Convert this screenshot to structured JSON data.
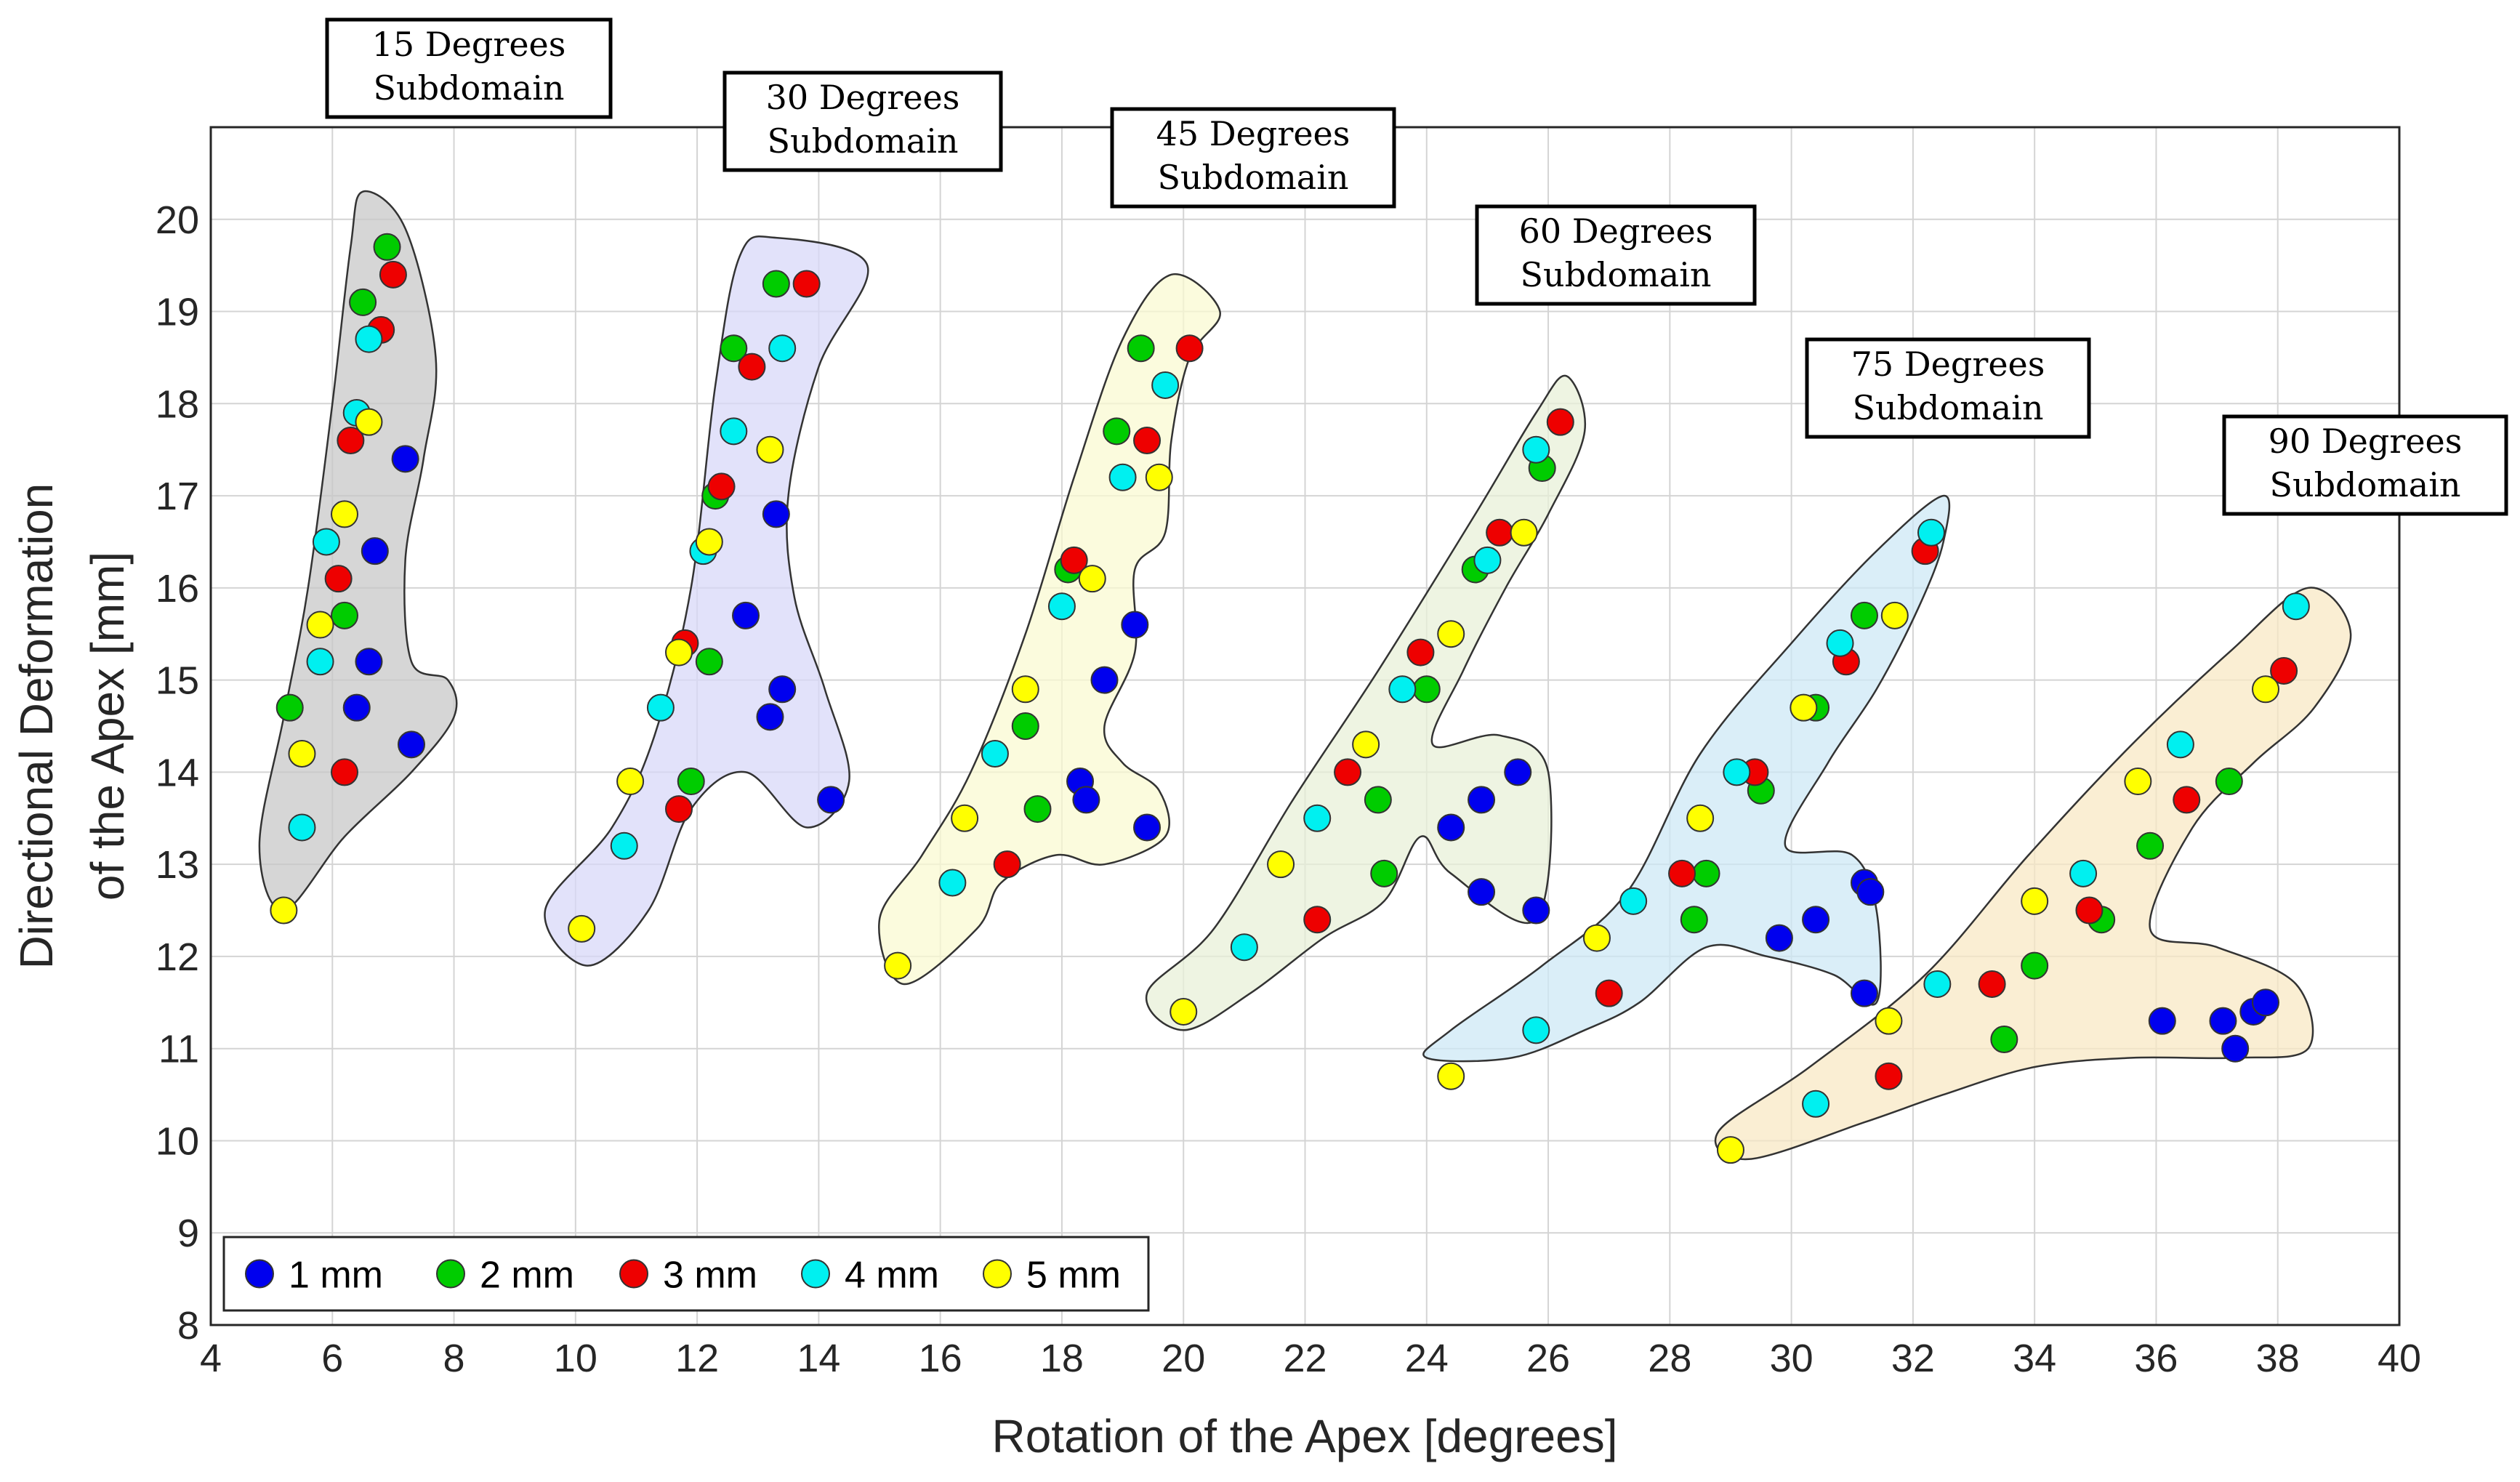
{
  "chart_data": {
    "type": "scatter",
    "xlabel": "Rotation of the Apex [degrees]",
    "ylabel": [
      "Directional Deformation",
      "of the Apex [mm]"
    ],
    "xlim": [
      4,
      40
    ],
    "ylim": [
      8,
      21
    ],
    "xticks": [
      4,
      6,
      8,
      10,
      12,
      14,
      16,
      18,
      20,
      22,
      24,
      26,
      28,
      30,
      32,
      34,
      36,
      38,
      40
    ],
    "yticks": [
      8,
      9,
      10,
      11,
      12,
      13,
      14,
      15,
      16,
      17,
      18,
      19,
      20
    ],
    "grid": true,
    "legend_position": "bottom-left",
    "series": [
      {
        "name": "1 mm",
        "color": "#0000ee",
        "points": [
          [
            7.2,
            17.4
          ],
          [
            6.7,
            16.4
          ],
          [
            6.6,
            15.2
          ],
          [
            6.4,
            14.7
          ],
          [
            7.3,
            14.3
          ],
          [
            13.3,
            16.8
          ],
          [
            12.8,
            15.7
          ],
          [
            13.4,
            14.9
          ],
          [
            13.2,
            14.6
          ],
          [
            14.2,
            13.7
          ],
          [
            19.2,
            15.6
          ],
          [
            18.7,
            15.0
          ],
          [
            18.3,
            13.9
          ],
          [
            18.4,
            13.7
          ],
          [
            19.4,
            13.4
          ],
          [
            25.5,
            14.0
          ],
          [
            24.4,
            13.4
          ],
          [
            24.9,
            13.7
          ],
          [
            24.9,
            12.7
          ],
          [
            25.8,
            12.5
          ],
          [
            31.2,
            12.8
          ],
          [
            31.3,
            12.7
          ],
          [
            30.4,
            12.4
          ],
          [
            29.8,
            12.2
          ],
          [
            31.2,
            11.6
          ],
          [
            36.1,
            11.3
          ],
          [
            37.1,
            11.3
          ],
          [
            37.6,
            11.4
          ],
          [
            37.8,
            11.5
          ],
          [
            37.3,
            11.0
          ]
        ]
      },
      {
        "name": "2 mm",
        "color": "#00cc00",
        "points": [
          [
            6.9,
            19.7
          ],
          [
            6.5,
            19.1
          ],
          [
            6.2,
            15.7
          ],
          [
            5.3,
            14.7
          ],
          [
            13.3,
            19.3
          ],
          [
            12.6,
            18.6
          ],
          [
            12.3,
            17.0
          ],
          [
            12.2,
            15.2
          ],
          [
            11.9,
            13.9
          ],
          [
            19.3,
            18.6
          ],
          [
            18.9,
            17.7
          ],
          [
            18.1,
            16.2
          ],
          [
            17.4,
            14.5
          ],
          [
            17.6,
            13.6
          ],
          [
            25.9,
            17.3
          ],
          [
            24.8,
            16.2
          ],
          [
            24.0,
            14.9
          ],
          [
            23.2,
            13.7
          ],
          [
            23.3,
            12.9
          ],
          [
            31.2,
            15.7
          ],
          [
            30.4,
            14.7
          ],
          [
            29.5,
            13.8
          ],
          [
            28.6,
            12.9
          ],
          [
            28.4,
            12.4
          ],
          [
            37.2,
            13.9
          ],
          [
            35.9,
            13.2
          ],
          [
            35.1,
            12.4
          ],
          [
            34.0,
            11.9
          ],
          [
            33.5,
            11.1
          ]
        ]
      },
      {
        "name": "3 mm",
        "color": "#ee0000",
        "points": [
          [
            7.0,
            19.4
          ],
          [
            6.8,
            18.8
          ],
          [
            6.3,
            17.6
          ],
          [
            6.1,
            16.1
          ],
          [
            6.2,
            14.0
          ],
          [
            13.8,
            19.3
          ],
          [
            12.9,
            18.4
          ],
          [
            12.4,
            17.1
          ],
          [
            11.8,
            15.4
          ],
          [
            11.7,
            13.6
          ],
          [
            20.1,
            18.6
          ],
          [
            19.4,
            17.6
          ],
          [
            18.2,
            16.3
          ],
          [
            17.1,
            13.0
          ],
          [
            26.2,
            17.8
          ],
          [
            25.2,
            16.6
          ],
          [
            23.9,
            15.3
          ],
          [
            22.7,
            14.0
          ],
          [
            22.2,
            12.4
          ],
          [
            32.2,
            16.4
          ],
          [
            30.9,
            15.2
          ],
          [
            29.4,
            14.0
          ],
          [
            28.2,
            12.9
          ],
          [
            27.0,
            11.6
          ],
          [
            38.1,
            15.1
          ],
          [
            36.5,
            13.7
          ],
          [
            34.9,
            12.5
          ],
          [
            33.3,
            11.7
          ],
          [
            31.6,
            10.7
          ]
        ]
      },
      {
        "name": "4 mm",
        "color": "#00f0f0",
        "points": [
          [
            6.6,
            18.7
          ],
          [
            6.4,
            17.9
          ],
          [
            5.9,
            16.5
          ],
          [
            5.8,
            15.2
          ],
          [
            5.5,
            13.4
          ],
          [
            13.4,
            18.6
          ],
          [
            12.6,
            17.7
          ],
          [
            12.1,
            16.4
          ],
          [
            11.4,
            14.7
          ],
          [
            10.8,
            13.2
          ],
          [
            19.7,
            18.2
          ],
          [
            19.0,
            17.2
          ],
          [
            18.0,
            15.8
          ],
          [
            16.9,
            14.2
          ],
          [
            16.2,
            12.8
          ],
          [
            25.8,
            17.5
          ],
          [
            25.0,
            16.3
          ],
          [
            23.6,
            14.9
          ],
          [
            22.2,
            13.5
          ],
          [
            21.0,
            12.1
          ],
          [
            32.3,
            16.6
          ],
          [
            30.8,
            15.4
          ],
          [
            29.1,
            14.0
          ],
          [
            27.4,
            12.6
          ],
          [
            25.8,
            11.2
          ],
          [
            38.3,
            15.8
          ],
          [
            36.4,
            14.3
          ],
          [
            34.8,
            12.9
          ],
          [
            32.4,
            11.7
          ],
          [
            30.4,
            10.4
          ]
        ]
      },
      {
        "name": "5 mm",
        "color": "#ffff00",
        "points": [
          [
            6.6,
            17.8
          ],
          [
            6.2,
            16.8
          ],
          [
            5.8,
            15.6
          ],
          [
            5.5,
            14.2
          ],
          [
            5.2,
            12.5
          ],
          [
            13.2,
            17.5
          ],
          [
            12.2,
            16.5
          ],
          [
            11.7,
            15.3
          ],
          [
            10.9,
            13.9
          ],
          [
            10.1,
            12.3
          ],
          [
            19.6,
            17.2
          ],
          [
            18.5,
            16.1
          ],
          [
            17.4,
            14.9
          ],
          [
            16.4,
            13.5
          ],
          [
            15.3,
            11.9
          ],
          [
            25.6,
            16.6
          ],
          [
            24.4,
            15.5
          ],
          [
            23.0,
            14.3
          ],
          [
            21.6,
            13.0
          ],
          [
            20.0,
            11.4
          ],
          [
            31.7,
            15.7
          ],
          [
            30.2,
            14.7
          ],
          [
            28.5,
            13.5
          ],
          [
            26.8,
            12.2
          ],
          [
            24.4,
            10.7
          ],
          [
            37.8,
            14.9
          ],
          [
            35.7,
            13.9
          ],
          [
            34.0,
            12.6
          ],
          [
            31.6,
            11.3
          ],
          [
            29.0,
            9.9
          ]
        ]
      }
    ],
    "regions": [
      {
        "name": "15 Degrees Subdomain",
        "color": "#c8c8c8",
        "outline": [
          [
            6.5,
            20.3
          ],
          [
            7.2,
            19.9
          ],
          [
            7.7,
            18.5
          ],
          [
            7.5,
            17.4
          ],
          [
            7.2,
            16.3
          ],
          [
            7.3,
            15.2
          ],
          [
            7.9,
            15.0
          ],
          [
            8.0,
            14.6
          ],
          [
            7.3,
            14.0
          ],
          [
            6.2,
            13.3
          ],
          [
            5.2,
            12.5
          ],
          [
            4.8,
            13.2
          ],
          [
            5.2,
            14.6
          ],
          [
            5.6,
            16.0
          ],
          [
            6.0,
            18.0
          ],
          [
            6.3,
            19.7
          ]
        ]
      },
      {
        "name": "30 Degrees Subdomain",
        "color": "#d8d8f8",
        "outline": [
          [
            13.3,
            19.8
          ],
          [
            14.8,
            19.5
          ],
          [
            14.0,
            18.4
          ],
          [
            13.5,
            17.0
          ],
          [
            13.6,
            15.9
          ],
          [
            14.1,
            14.9
          ],
          [
            14.5,
            13.9
          ],
          [
            13.8,
            13.4
          ],
          [
            12.8,
            14.0
          ],
          [
            11.9,
            13.6
          ],
          [
            11.2,
            12.5
          ],
          [
            10.2,
            11.9
          ],
          [
            9.5,
            12.5
          ],
          [
            10.6,
            13.4
          ],
          [
            11.3,
            14.4
          ],
          [
            11.9,
            16.0
          ],
          [
            12.3,
            18.2
          ],
          [
            12.7,
            19.6
          ]
        ]
      },
      {
        "name": "45 Degrees Subdomain",
        "color": "#fafad2",
        "outline": [
          [
            19.8,
            19.4
          ],
          [
            20.6,
            19.0
          ],
          [
            20.1,
            18.5
          ],
          [
            19.8,
            17.6
          ],
          [
            19.7,
            16.6
          ],
          [
            19.2,
            16.2
          ],
          [
            19.2,
            15.3
          ],
          [
            18.7,
            14.5
          ],
          [
            19.0,
            14.1
          ],
          [
            19.6,
            13.8
          ],
          [
            19.7,
            13.3
          ],
          [
            18.7,
            13.0
          ],
          [
            17.9,
            13.1
          ],
          [
            17.0,
            12.8
          ],
          [
            16.6,
            12.3
          ],
          [
            15.4,
            11.7
          ],
          [
            15.0,
            12.4
          ],
          [
            15.7,
            13.1
          ],
          [
            16.5,
            14.0
          ],
          [
            17.4,
            15.5
          ],
          [
            18.2,
            17.2
          ],
          [
            19.0,
            18.7
          ]
        ]
      },
      {
        "name": "60 Degrees Subdomain",
        "color": "#e8f0d8",
        "outline": [
          [
            26.3,
            18.3
          ],
          [
            26.6,
            17.7
          ],
          [
            26.0,
            16.8
          ],
          [
            25.3,
            16.0
          ],
          [
            24.6,
            15.1
          ],
          [
            24.1,
            14.3
          ],
          [
            25.2,
            14.4
          ],
          [
            26.0,
            14.0
          ],
          [
            25.8,
            12.4
          ],
          [
            24.4,
            12.9
          ],
          [
            23.9,
            13.3
          ],
          [
            23.3,
            12.6
          ],
          [
            22.3,
            12.2
          ],
          [
            21.1,
            11.6
          ],
          [
            20.0,
            11.2
          ],
          [
            19.4,
            11.6
          ],
          [
            20.5,
            12.3
          ],
          [
            21.8,
            13.7
          ],
          [
            23.2,
            15.1
          ],
          [
            24.8,
            16.8
          ],
          [
            25.8,
            17.9
          ]
        ]
      },
      {
        "name": "75 Degrees Subdomain",
        "color": "#cde8f5",
        "outline": [
          [
            32.5,
            17.0
          ],
          [
            32.5,
            16.5
          ],
          [
            32.1,
            15.8
          ],
          [
            31.4,
            14.9
          ],
          [
            30.6,
            14.1
          ],
          [
            29.9,
            13.2
          ],
          [
            31.0,
            13.1
          ],
          [
            31.4,
            12.5
          ],
          [
            31.4,
            11.5
          ],
          [
            30.7,
            11.8
          ],
          [
            29.6,
            12.0
          ],
          [
            28.6,
            12.1
          ],
          [
            27.5,
            11.5
          ],
          [
            26.6,
            11.2
          ],
          [
            25.4,
            10.9
          ],
          [
            24.0,
            10.9
          ],
          [
            24.4,
            11.2
          ],
          [
            25.9,
            11.9
          ],
          [
            27.3,
            12.7
          ],
          [
            28.5,
            14.2
          ],
          [
            30.0,
            15.4
          ],
          [
            31.4,
            16.4
          ]
        ]
      },
      {
        "name": "90 Degrees Subdomain",
        "color": "#f8e8c4",
        "outline": [
          [
            38.5,
            16.0
          ],
          [
            39.2,
            15.5
          ],
          [
            38.6,
            14.7
          ],
          [
            37.6,
            14.1
          ],
          [
            36.6,
            13.4
          ],
          [
            35.9,
            12.3
          ],
          [
            37.0,
            12.1
          ],
          [
            38.3,
            11.7
          ],
          [
            38.5,
            11.0
          ],
          [
            37.3,
            10.9
          ],
          [
            35.6,
            10.9
          ],
          [
            34.0,
            10.8
          ],
          [
            32.5,
            10.5
          ],
          [
            31.2,
            10.2
          ],
          [
            29.3,
            9.8
          ],
          [
            28.8,
            10.1
          ],
          [
            30.3,
            10.8
          ],
          [
            32.2,
            11.8
          ],
          [
            33.9,
            13.1
          ],
          [
            35.6,
            14.3
          ],
          [
            37.2,
            15.3
          ]
        ]
      }
    ],
    "annotations": [
      {
        "lines": [
          "15 Degrees",
          "Subdomain"
        ]
      },
      {
        "lines": [
          "30 Degrees",
          "Subdomain"
        ]
      },
      {
        "lines": [
          "45 Degrees",
          "Subdomain"
        ]
      },
      {
        "lines": [
          "60 Degrees",
          "Subdomain"
        ]
      },
      {
        "lines": [
          "75 Degrees",
          "Subdomain"
        ]
      },
      {
        "lines": [
          "90 Degrees",
          "Subdomain"
        ]
      }
    ]
  }
}
